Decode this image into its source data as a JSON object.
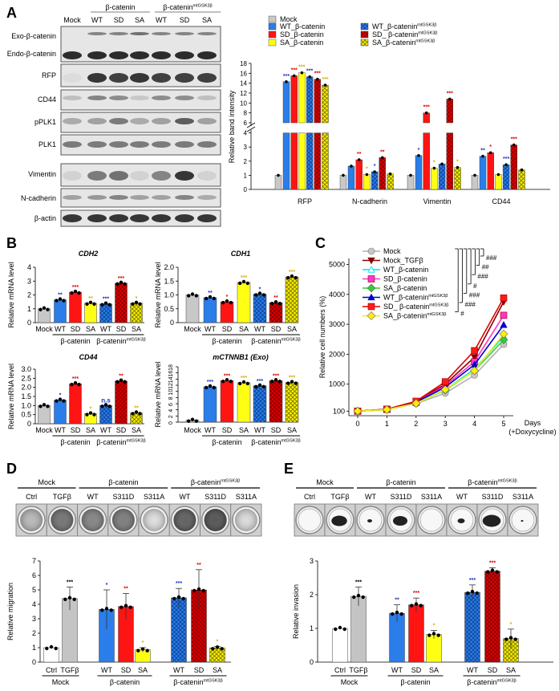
{
  "panel_labels": {
    "a": "A",
    "b": "B",
    "c": "C",
    "d": "D",
    "e": "E"
  },
  "colors": {
    "mock": "#c8c8c8",
    "white": "#ffffff",
    "tgf": "#c4c4c4",
    "wt": "#2b7de9",
    "sd": "#ff1414",
    "sa": "#ffff14",
    "mtwt": "#2b7de9",
    "mtsd": "#d10000",
    "mtsa": "#e8e000",
    "star_wt": "#1f2fb8",
    "star_sd": "#e00000",
    "star_sa": "#d4b000",
    "star_black": "#000000"
  },
  "blot": {
    "group1": "β-catenin",
    "group2": "β-catenin",
    "group2_sup": "mtGSK3β",
    "lanes": [
      "Mock",
      "WT",
      "SD",
      "SA",
      "WT",
      "SD",
      "SA"
    ],
    "rows": [
      "Exo-β-catenin",
      "Endo-β-catenin",
      "RFP",
      "CD44",
      "pPLK1",
      "PLK1",
      "Vimentin",
      "N-cadherin",
      "β-actin"
    ]
  },
  "chart_data": [
    {
      "id": "A",
      "type": "bar",
      "ylabel": "Relative band intensity",
      "categories": [
        "RFP",
        "N-cadherin",
        "Vimentin",
        "CD44"
      ],
      "ylim": [
        0,
        18
      ],
      "axis_break": [
        4,
        6
      ],
      "yticks_lower": [
        0,
        1,
        2,
        3,
        4
      ],
      "yticks_upper": [
        6,
        8,
        10,
        12,
        14,
        16,
        18
      ],
      "legend": [
        {
          "name": "Mock",
          "sup": "",
          "fill": "mock"
        },
        {
          "name": "WT_β-catenin",
          "sup": "",
          "fill": "wt"
        },
        {
          "name": "SD_β-catenin",
          "sup": "",
          "fill": "sd"
        },
        {
          "name": "SA_β-catenin",
          "sup": "",
          "fill": "sa"
        },
        {
          "name": "WT_β-catenin",
          "sup": "mtGSK3β",
          "fill": "mtwt"
        },
        {
          "name": "SD_ β-catenin",
          "sup": "mtGSK3β",
          "fill": "mtsd"
        },
        {
          "name": "SA_β-catenin",
          "sup": "mtGSK3β",
          "fill": "mtsa"
        }
      ],
      "series": [
        {
          "name": "Mock",
          "fill": "mock",
          "star_color": "star_black",
          "values": [
            1,
            1,
            1,
            1
          ],
          "stars": [
            "",
            "",
            "",
            ""
          ]
        },
        {
          "name": "WT_β-catenin",
          "fill": "wt",
          "star_color": "star_wt",
          "values": [
            14.3,
            1.65,
            2.4,
            2.35
          ],
          "stars": [
            "***",
            "",
            "*",
            "**"
          ]
        },
        {
          "name": "SD_β-catenin",
          "fill": "sd",
          "star_color": "star_sd",
          "values": [
            15.5,
            2.1,
            8.0,
            2.6
          ],
          "stars": [
            "***",
            "**",
            "***",
            "*"
          ]
        },
        {
          "name": "SA_β-catenin",
          "fill": "sa",
          "star_color": "star_sa",
          "values": [
            16.1,
            1.05,
            1.5,
            1.05
          ],
          "stars": [
            "***",
            "*",
            "*",
            ""
          ]
        },
        {
          "name": "WT_β-catenin mtGSK3β",
          "fill": "mtwt",
          "star_color": "star_wt",
          "values": [
            15.3,
            1.25,
            1.8,
            1.75
          ],
          "stars": [
            "***",
            "*",
            "",
            "***"
          ]
        },
        {
          "name": "SD_ β-catenin mtGSK3β",
          "fill": "mtsd",
          "star_color": "star_sd",
          "values": [
            14.8,
            2.25,
            10.8,
            3.15
          ],
          "stars": [
            "***",
            "**",
            "***",
            "***"
          ]
        },
        {
          "name": "SA_β-catenin mtGSK3β",
          "fill": "mtsa",
          "star_color": "star_sa",
          "values": [
            13.6,
            1.1,
            1.55,
            1.38
          ],
          "stars": [
            "***",
            "",
            "*",
            ""
          ]
        }
      ]
    },
    {
      "id": "B1",
      "type": "bar",
      "title": "CDH2",
      "ylabel": "Relative mRNA level",
      "ylim": [
        0,
        4
      ],
      "yticks": [
        "0",
        "1",
        "2",
        "3",
        "4"
      ],
      "ytick_values": [
        0,
        1,
        2,
        3,
        4
      ],
      "categories": [
        "Mock",
        "WT",
        "SD",
        "SA",
        "WT",
        "SD",
        "SA"
      ],
      "values": [
        1,
        1.65,
        2.2,
        1.4,
        1.35,
        2.85,
        1.4
      ],
      "fills": [
        "mock",
        "wt",
        "sd",
        "sa",
        "mtwt",
        "mtsd",
        "mtsa"
      ],
      "stars": [
        "",
        "**",
        "***",
        "**",
        "***",
        "***",
        "*"
      ],
      "star_colors": [
        "star_black",
        "star_wt",
        "star_sd",
        "star_sa",
        "star_wt",
        "star_sd",
        "star_sa"
      ],
      "groups": [
        {
          "label": "β-catenin",
          "sup": "",
          "from": 1,
          "to": 3
        },
        {
          "label": "β-catenin",
          "sup": "mtGSK3β",
          "from": 4,
          "to": 6
        }
      ]
    },
    {
      "id": "B2",
      "type": "bar",
      "title": "CDH1",
      "ylabel": "Relative mRNA level",
      "ylim": [
        0,
        2
      ],
      "yticks": [
        "0",
        "0.5",
        "1.0",
        "1.5",
        "2.0"
      ],
      "ytick_values": [
        0,
        0.5,
        1,
        1.5,
        2
      ],
      "categories": [
        "Mock",
        "WT",
        "SD",
        "SA",
        "WT",
        "SD",
        "SA"
      ],
      "values": [
        1,
        0.9,
        0.75,
        1.45,
        1.03,
        0.72,
        1.65
      ],
      "fills": [
        "mock",
        "wt",
        "sd",
        "sa",
        "mtwt",
        "mtsd",
        "mtsa"
      ],
      "stars": [
        "",
        "**",
        "*",
        "***",
        "*",
        "**",
        "***"
      ],
      "star_colors": [
        "star_black",
        "star_wt",
        "star_sd",
        "star_sa",
        "star_wt",
        "star_sd",
        "star_sa"
      ],
      "groups": [
        {
          "label": "β-catenin",
          "sup": "",
          "from": 1,
          "to": 3
        },
        {
          "label": "β-catenin",
          "sup": "mtGSK3β",
          "from": 4,
          "to": 6
        }
      ]
    },
    {
      "id": "B3",
      "type": "bar",
      "title": "CD44",
      "ylabel": "Relative mRNA level",
      "ylim": [
        0,
        3
      ],
      "yticks": [
        "0",
        "0.5",
        "1.0",
        "1.5",
        "2.0",
        "2.5",
        "3.0"
      ],
      "ytick_values": [
        0,
        0.5,
        1,
        1.5,
        2,
        2.5,
        3
      ],
      "categories": [
        "Mock",
        "WT",
        "SD",
        "SA",
        "WT",
        "SD",
        "SA"
      ],
      "values": [
        1,
        1.3,
        2.2,
        0.55,
        1.0,
        2.35,
        0.6
      ],
      "fills": [
        "mock",
        "wt",
        "sd",
        "sa",
        "mtwt",
        "mtsd",
        "mtsa"
      ],
      "stars": [
        "",
        "*",
        "***",
        "*",
        "n.s",
        "**",
        "**"
      ],
      "star_colors": [
        "star_black",
        "star_wt",
        "star_sd",
        "star_sa",
        "star_wt",
        "star_sd",
        "star_sa"
      ],
      "groups": [
        {
          "label": "β-catenin",
          "sup": "",
          "from": 1,
          "to": 3
        },
        {
          "label": "β-catenin",
          "sup": "mtGSK3β",
          "from": 4,
          "to": 6
        }
      ]
    },
    {
      "id": "B4",
      "type": "bar",
      "title": "mCTNNB1 (Exo)",
      "ylabel": "Relative mRNA level",
      "ylim": [
        0,
        18
      ],
      "yticks": [
        "0",
        "2",
        "4",
        "6",
        "8",
        "10",
        "12",
        "14",
        "16",
        "18"
      ],
      "ytick_values": [
        0,
        2,
        4,
        6,
        8,
        10,
        12,
        14,
        16,
        18
      ],
      "categories": [
        "Mock",
        "WT",
        "SD",
        "SA",
        "WT",
        "SD",
        "SA"
      ],
      "values": [
        0.6,
        11.5,
        13.5,
        12.8,
        11.8,
        13.5,
        12.9
      ],
      "fills": [
        "mock",
        "wt",
        "sd",
        "sa",
        "mtwt",
        "mtsd",
        "mtsa"
      ],
      "stars": [
        "",
        "***",
        "***",
        "***",
        "***",
        "***",
        "***"
      ],
      "star_colors": [
        "star_black",
        "star_wt",
        "star_sd",
        "star_sa",
        "star_wt",
        "star_sd",
        "star_sa"
      ],
      "groups": [
        {
          "label": "β-catenin",
          "sup": "",
          "from": 1,
          "to": 3
        },
        {
          "label": "β-catenin",
          "sup": "mtGSK3β",
          "from": 4,
          "to": 6
        }
      ]
    },
    {
      "id": "C",
      "type": "line",
      "ylabel": "Relative cell numbers (%)",
      "xlabel": "Days",
      "xlabel2": "(+Doxycycline)",
      "x": [
        0,
        1,
        2,
        3,
        4,
        5
      ],
      "xlim": [
        0,
        5
      ],
      "ylim": [
        0,
        5000
      ],
      "yticks": [
        100,
        1000,
        2000,
        3000,
        4000,
        5000
      ],
      "series": [
        {
          "name": "Mock",
          "sup": "",
          "color": "#b0b0b0",
          "marker_fill": "#c8c8c8",
          "marker": "circle",
          "values": [
            100,
            150,
            350,
            700,
            1300,
            2330
          ]
        },
        {
          "name": "Mock_TGFβ",
          "sup": "",
          "color": "#8b0000",
          "marker_fill": "#8b0000",
          "marker": "triangle-down",
          "values": [
            100,
            160,
            420,
            1000,
            1900,
            3750
          ]
        },
        {
          "name": "WT_β-catenin",
          "sup": "",
          "color": "#00e0f0",
          "marker_fill": "#ffffff",
          "marker": "triangle",
          "values": [
            100,
            150,
            380,
            820,
            1500,
            2600
          ]
        },
        {
          "name": "SD_β-catenin",
          "sup": "",
          "color": "#ff33cc",
          "marker_fill": "#ff33cc",
          "marker": "square",
          "values": [
            100,
            160,
            400,
            950,
            1750,
            3300
          ]
        },
        {
          "name": "SA_β-catenin",
          "sup": "",
          "color": "#33cc33",
          "marker_fill": "#33cc33",
          "marker": "diamond",
          "values": [
            100,
            150,
            370,
            800,
            1450,
            2480
          ]
        },
        {
          "name": "WT_β-catenin",
          "sup": "mtGSK3β",
          "color": "#0000cc",
          "marker_fill": "#0000cc",
          "marker": "triangle",
          "values": [
            100,
            155,
            400,
            900,
            1650,
            2980
          ]
        },
        {
          "name": "SD_ β-catenin",
          "sup": "mtGSK3β",
          "color": "#e00000",
          "marker_fill": "#ff1a1a",
          "marker": "square",
          "values": [
            100,
            165,
            430,
            1080,
            2120,
            3880
          ]
        },
        {
          "name": "SA_β-catenin",
          "sup": "mtGSK3β",
          "color": "#f0ee20",
          "marker_fill": "#ffee00",
          "marker": "diamond",
          "values": [
            100,
            150,
            360,
            820,
            1450,
            2680
          ]
        }
      ],
      "significance": [
        "###",
        "##",
        "###",
        "#",
        "###",
        "###",
        "#"
      ]
    },
    {
      "id": "D",
      "type": "bar",
      "ylabel": "Relative migration",
      "ylim": [
        0,
        7
      ],
      "yticks": [
        "0",
        "1",
        "2",
        "3",
        "4",
        "5",
        "6",
        "7"
      ],
      "ytick_values": [
        0,
        1,
        2,
        3,
        4,
        5,
        6,
        7
      ],
      "categories": [
        "Ctrl",
        "TGFβ",
        "WT",
        "SD",
        "SA",
        "WT",
        "SD",
        "SA"
      ],
      "values": [
        1,
        4.4,
        3.65,
        3.85,
        0.85,
        4.45,
        5.0,
        0.98
      ],
      "err": [
        0,
        0.8,
        1.35,
        0.9,
        0.15,
        0.65,
        1.4,
        0.1
      ],
      "fills": [
        "white",
        "tgf",
        "wt",
        "sd",
        "sa",
        "mtwt",
        "mtsd",
        "mtsa"
      ],
      "stars": [
        "",
        "***",
        "*",
        "**",
        "*",
        "***",
        "**",
        "*"
      ],
      "star_colors": [
        "star_black",
        "star_black",
        "star_wt",
        "star_sd",
        "star_sa",
        "star_wt",
        "star_sd",
        "star_sa"
      ],
      "groups": [
        {
          "label": "Mock",
          "sup": "",
          "from": 0,
          "to": 1
        },
        {
          "label": "β-catenin",
          "sup": "",
          "from": 2,
          "to": 4
        },
        {
          "label": "β-catenin",
          "sup": "mtGSK3β",
          "from": 5,
          "to": 7
        }
      ]
    },
    {
      "id": "E",
      "type": "bar",
      "ylabel": "Relative invasion",
      "ylim": [
        0,
        3
      ],
      "yticks": [
        "0",
        "1",
        "2",
        "3"
      ],
      "ytick_values": [
        0,
        1,
        2,
        3
      ],
      "categories": [
        "Ctrl",
        "TGFβ",
        "WT",
        "SD",
        "SA",
        "WT",
        "SD",
        "SA"
      ],
      "values": [
        1,
        1.95,
        1.45,
        1.7,
        0.82,
        2.07,
        2.7,
        0.7
      ],
      "err": [
        0,
        0.28,
        0.25,
        0.2,
        0.12,
        0.22,
        0.1,
        0.28
      ],
      "fills": [
        "white",
        "tgf",
        "wt",
        "sd",
        "sa",
        "mtwt",
        "mtsd",
        "mtsa"
      ],
      "stars": [
        "",
        "***",
        "**",
        "***",
        "*",
        "***",
        "***",
        "*"
      ],
      "star_colors": [
        "star_black",
        "star_black",
        "star_wt",
        "star_sd",
        "star_sa",
        "star_wt",
        "star_sd",
        "star_sa"
      ],
      "groups": [
        {
          "label": "Mock",
          "sup": "",
          "from": 0,
          "to": 1
        },
        {
          "label": "β-catenin",
          "sup": "",
          "from": 2,
          "to": 4
        },
        {
          "label": "β-catenin",
          "sup": "mtGSK3β",
          "from": 5,
          "to": 7
        }
      ]
    }
  ],
  "wells": {
    "headers": [
      {
        "label": "Mock",
        "sup": ""
      },
      {
        "label": "β-catenin",
        "sup": ""
      },
      {
        "label": "β-catenin",
        "sup": "mtGSK3β"
      }
    ],
    "lanes": [
      "Ctrl",
      "TGFβ",
      "WT",
      "S311D",
      "S311A",
      "WT",
      "S311D",
      "S311A"
    ]
  }
}
